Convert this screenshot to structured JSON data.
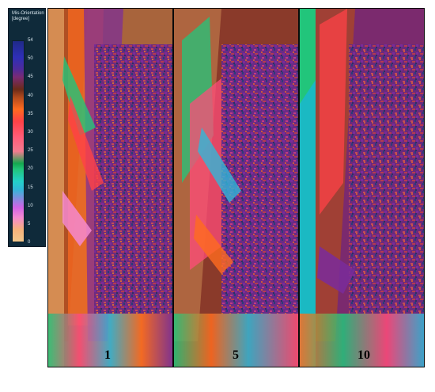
{
  "legend": {
    "title_line1": "Mis-Orientation",
    "title_line2": "[degree]",
    "ticks": [
      "54",
      "50",
      "45",
      "40",
      "35",
      "30",
      "25",
      "20",
      "15",
      "10",
      "5",
      "0"
    ]
  },
  "panels": [
    {
      "label": "1",
      "edge_color": "#d58c52"
    },
    {
      "label": "5",
      "edge_color": "#b46d44"
    },
    {
      "label": "10",
      "edge_color": "#1bb9c3"
    }
  ],
  "colors": {
    "background": "#ffffff",
    "legend_bg": "#0f2a3a",
    "core_mix": [
      "#7b2a6e",
      "#5b2a8d",
      "#b43b50",
      "#2b3c7a",
      "#c85a3e",
      "#7a2b9b",
      "#8a2f2f",
      "#2d2f63",
      "#c23a84"
    ]
  }
}
